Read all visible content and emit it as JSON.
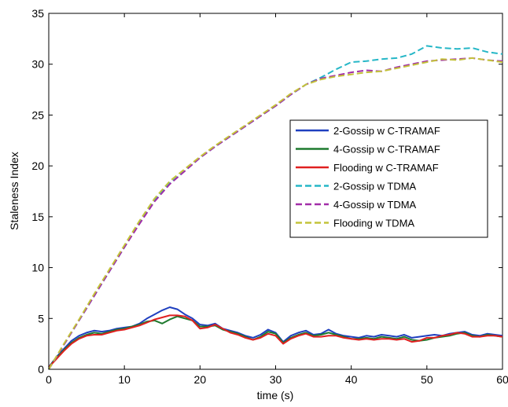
{
  "chart_data": {
    "type": "line",
    "title": "",
    "xlabel": "time (s)",
    "ylabel": "Staleness Index",
    "xlim": [
      0,
      60
    ],
    "ylim": [
      0,
      35
    ],
    "xticks": [
      "0",
      "10",
      "20",
      "30",
      "40",
      "50",
      "60"
    ],
    "yticks": [
      "0",
      "5",
      "10",
      "15",
      "20",
      "25",
      "30",
      "35"
    ],
    "grid": false,
    "legend_position": "right",
    "series": [
      {
        "name": "2-Gossip w C-TRAMAF",
        "color": "#1f3fbf",
        "dash": "solid",
        "x": [
          0,
          1,
          2,
          3,
          4,
          5,
          6,
          7,
          8,
          9,
          10,
          11,
          12,
          13,
          14,
          15,
          16,
          17,
          18,
          19,
          20,
          21,
          22,
          23,
          24,
          25,
          26,
          27,
          28,
          29,
          30,
          31,
          32,
          33,
          34,
          35,
          36,
          37,
          38,
          39,
          40,
          41,
          42,
          43,
          44,
          45,
          46,
          47,
          48,
          49,
          50,
          51,
          52,
          53,
          54,
          55,
          56,
          57,
          58,
          59,
          60
        ],
        "values": [
          0.2,
          1.2,
          2.0,
          2.8,
          3.3,
          3.6,
          3.8,
          3.7,
          3.8,
          4.0,
          4.1,
          4.2,
          4.5,
          5.0,
          5.4,
          5.8,
          6.1,
          5.9,
          5.4,
          5.0,
          4.4,
          4.3,
          4.5,
          4.0,
          3.8,
          3.6,
          3.3,
          3.1,
          3.4,
          3.9,
          3.6,
          2.7,
          3.3,
          3.6,
          3.8,
          3.4,
          3.5,
          3.9,
          3.5,
          3.3,
          3.2,
          3.1,
          3.3,
          3.2,
          3.4,
          3.3,
          3.2,
          3.4,
          3.1,
          3.2,
          3.3,
          3.4,
          3.3,
          3.5,
          3.6,
          3.7,
          3.4,
          3.3,
          3.5,
          3.4,
          3.3
        ]
      },
      {
        "name": "4-Gossip w C-TRAMAF",
        "color": "#1e7a2e",
        "dash": "solid",
        "x": [
          0,
          1,
          2,
          3,
          4,
          5,
          6,
          7,
          8,
          9,
          10,
          11,
          12,
          13,
          14,
          15,
          16,
          17,
          18,
          19,
          20,
          21,
          22,
          23,
          24,
          25,
          26,
          27,
          28,
          29,
          30,
          31,
          32,
          33,
          34,
          35,
          36,
          37,
          38,
          39,
          40,
          41,
          42,
          43,
          44,
          45,
          46,
          47,
          48,
          49,
          50,
          51,
          52,
          53,
          54,
          55,
          56,
          57,
          58,
          59,
          60
        ],
        "values": [
          0.2,
          1.1,
          1.9,
          2.6,
          3.1,
          3.4,
          3.6,
          3.5,
          3.7,
          3.9,
          4.0,
          4.2,
          4.4,
          4.7,
          4.8,
          4.5,
          4.9,
          5.2,
          5.0,
          4.8,
          4.2,
          4.2,
          4.3,
          3.9,
          3.7,
          3.5,
          3.2,
          2.9,
          3.2,
          3.7,
          3.5,
          2.6,
          3.1,
          3.4,
          3.6,
          3.3,
          3.4,
          3.6,
          3.4,
          3.2,
          3.0,
          3.0,
          3.1,
          3.0,
          3.2,
          3.1,
          3.0,
          3.2,
          2.9,
          2.8,
          2.9,
          3.1,
          3.2,
          3.3,
          3.5,
          3.6,
          3.3,
          3.2,
          3.4,
          3.3,
          3.2
        ]
      },
      {
        "name": "Flooding w C-TRAMAF",
        "color": "#e02020",
        "dash": "solid",
        "x": [
          0,
          1,
          2,
          3,
          4,
          5,
          6,
          7,
          8,
          9,
          10,
          11,
          12,
          13,
          14,
          15,
          16,
          17,
          18,
          19,
          20,
          21,
          22,
          23,
          24,
          25,
          26,
          27,
          28,
          29,
          30,
          31,
          32,
          33,
          34,
          35,
          36,
          37,
          38,
          39,
          40,
          41,
          42,
          43,
          44,
          45,
          46,
          47,
          48,
          49,
          50,
          51,
          52,
          53,
          54,
          55,
          56,
          57,
          58,
          59,
          60
        ],
        "values": [
          0.2,
          1.0,
          1.8,
          2.5,
          3.0,
          3.3,
          3.4,
          3.4,
          3.6,
          3.8,
          3.9,
          4.1,
          4.3,
          4.6,
          4.9,
          5.1,
          5.3,
          5.3,
          5.2,
          4.8,
          4.0,
          4.1,
          4.4,
          4.0,
          3.6,
          3.4,
          3.1,
          2.9,
          3.1,
          3.5,
          3.3,
          2.5,
          3.0,
          3.3,
          3.5,
          3.2,
          3.2,
          3.3,
          3.3,
          3.1,
          3.0,
          2.9,
          3.0,
          2.9,
          3.0,
          3.0,
          2.9,
          3.0,
          2.7,
          2.8,
          3.1,
          3.1,
          3.3,
          3.4,
          3.6,
          3.5,
          3.2,
          3.2,
          3.3,
          3.3,
          3.2
        ]
      },
      {
        "name": "2-Gossip w TDMA",
        "color": "#26b7c7",
        "dash": "dashed",
        "x": [
          0,
          2,
          4,
          6,
          8,
          10,
          12,
          14,
          16,
          18,
          20,
          22,
          24,
          26,
          28,
          30,
          32,
          34,
          36,
          38,
          40,
          42,
          44,
          46,
          48,
          50,
          52,
          54,
          56,
          58,
          60
        ],
        "values": [
          0.0,
          2.4,
          4.8,
          7.2,
          9.6,
          12.0,
          14.4,
          16.6,
          18.3,
          19.5,
          20.8,
          21.9,
          22.9,
          23.9,
          24.9,
          25.9,
          27.0,
          28.0,
          28.7,
          29.5,
          30.2,
          30.3,
          30.5,
          30.6,
          31.0,
          31.8,
          31.6,
          31.5,
          31.6,
          31.2,
          31.0
        ]
      },
      {
        "name": "4-Gossip w TDMA",
        "color": "#a22ea8",
        "dash": "dashed",
        "x": [
          0,
          2,
          4,
          6,
          8,
          10,
          12,
          14,
          16,
          18,
          20,
          22,
          24,
          26,
          28,
          30,
          32,
          34,
          36,
          38,
          40,
          42,
          44,
          46,
          48,
          50,
          52,
          54,
          56,
          58,
          60
        ],
        "values": [
          0.0,
          2.4,
          4.8,
          7.2,
          9.6,
          12.0,
          14.3,
          16.5,
          18.2,
          19.5,
          20.8,
          21.9,
          22.9,
          23.9,
          24.9,
          25.9,
          27.0,
          28.0,
          28.6,
          28.9,
          29.2,
          29.4,
          29.3,
          29.7,
          30.0,
          30.3,
          30.4,
          30.5,
          30.6,
          30.4,
          30.3
        ]
      },
      {
        "name": "Flooding w TDMA",
        "color": "#c3c33a",
        "dash": "dashed",
        "x": [
          0,
          2,
          4,
          6,
          8,
          10,
          12,
          14,
          16,
          18,
          20,
          22,
          24,
          26,
          28,
          30,
          32,
          34,
          36,
          38,
          40,
          42,
          44,
          46,
          48,
          50,
          52,
          54,
          56,
          58,
          60
        ],
        "values": [
          0.0,
          2.5,
          4.9,
          7.4,
          9.8,
          12.2,
          14.6,
          16.8,
          18.5,
          19.7,
          20.9,
          22.0,
          23.0,
          24.0,
          25.0,
          26.0,
          27.1,
          28.0,
          28.5,
          28.8,
          29.0,
          29.2,
          29.3,
          29.6,
          29.9,
          30.2,
          30.5,
          30.4,
          30.6,
          30.4,
          30.2
        ]
      }
    ]
  }
}
